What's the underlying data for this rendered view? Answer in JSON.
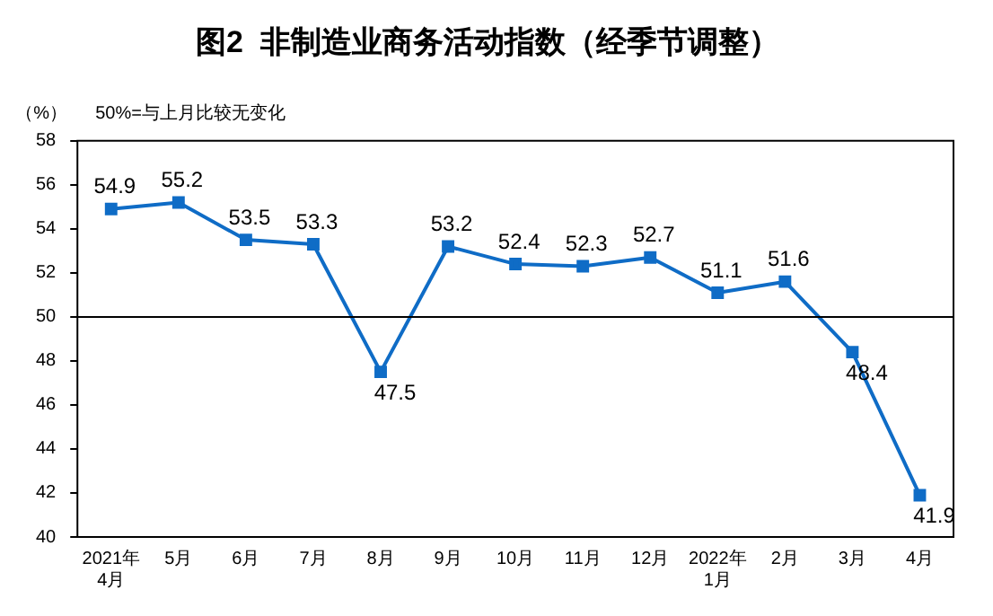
{
  "chart_data": {
    "type": "line",
    "title": "图2  非制造业商务活动指数（经季节调整）",
    "ylabel": "（%）",
    "annotations": [
      "50%=与上月比较无变化"
    ],
    "categories": [
      "2021年\n4月",
      "5月",
      "6月",
      "7月",
      "8月",
      "9月",
      "10月",
      "11月",
      "12月",
      "2022年\n1月",
      "2月",
      "3月",
      "4月"
    ],
    "series": [
      {
        "color": "#0f6cc6",
        "values": [
          54.9,
          55.2,
          53.5,
          53.3,
          47.5,
          53.2,
          52.4,
          52.3,
          52.7,
          51.1,
          51.6,
          48.4,
          41.9
        ]
      }
    ],
    "ylim": [
      40,
      58
    ],
    "yticks": [
      40,
      42,
      44,
      46,
      48,
      50,
      52,
      54,
      56,
      58
    ],
    "grid": false,
    "legend": false,
    "marker": "square",
    "line_style": "solid",
    "data_labels": true,
    "ref_lines": [
      {
        "axis": "y",
        "value": 50,
        "color": "#000000"
      }
    ]
  }
}
